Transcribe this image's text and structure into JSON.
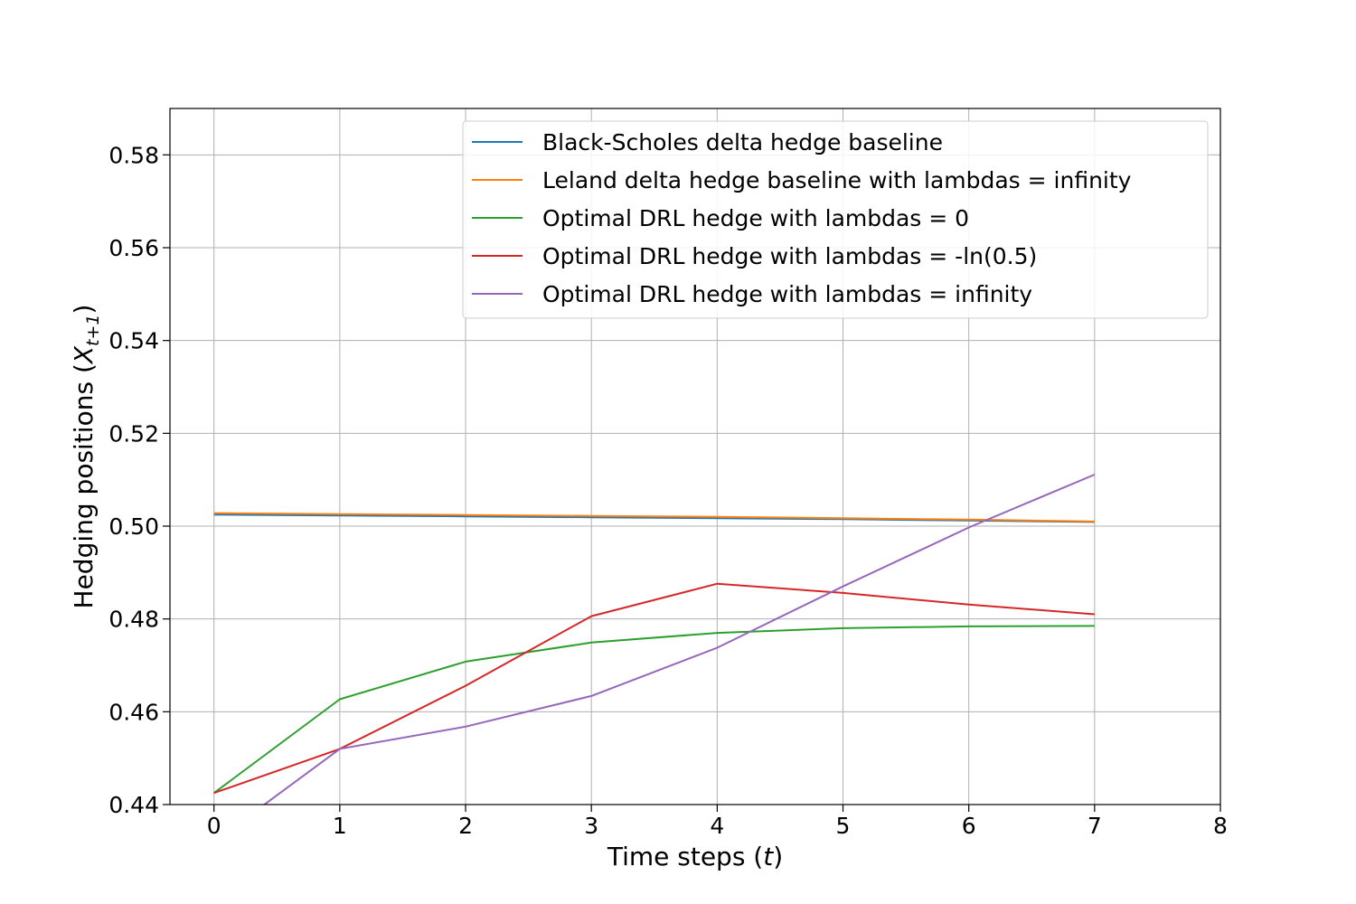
{
  "chart_data": {
    "type": "line",
    "x": [
      0,
      1,
      2,
      3,
      4,
      5,
      6,
      7
    ],
    "xlim": [
      -0.35,
      8.0
    ],
    "ylim": [
      0.44,
      0.59
    ],
    "xticks": [
      0,
      1,
      2,
      3,
      4,
      5,
      6,
      7,
      8
    ],
    "xtick_labels": [
      "0",
      "1",
      "2",
      "3",
      "4",
      "5",
      "6",
      "7",
      "8"
    ],
    "yticks": [
      0.44,
      0.46,
      0.48,
      0.5,
      0.52,
      0.54,
      0.56,
      0.58
    ],
    "ytick_labels": [
      "0.44",
      "0.46",
      "0.48",
      "0.50",
      "0.52",
      "0.54",
      "0.56",
      "0.58"
    ],
    "xlabel": {
      "main": "Time steps (",
      "var": "t",
      "close": ")"
    },
    "ylabel": {
      "main": "Hedging positions (",
      "var": "X",
      "sub": "t+1",
      "close": ")"
    },
    "grid": true,
    "legend_position": "top-right",
    "series": [
      {
        "name": "Black-Scholes delta hedge baseline",
        "color": "#1f77b4",
        "values": [
          0.5025,
          0.5023,
          0.5021,
          0.5019,
          0.5017,
          0.5015,
          0.5012,
          0.5009
        ]
      },
      {
        "name": "Leland delta hedge baseline with lambdas = infinity",
        "color": "#ff7f0e",
        "values": [
          0.5028,
          0.5026,
          0.5024,
          0.5022,
          0.502,
          0.5017,
          0.5014,
          0.501
        ]
      },
      {
        "name": "Optimal DRL hedge with lambdas = 0",
        "color": "#2ca02c",
        "values": [
          0.4425,
          0.4627,
          0.4708,
          0.4749,
          0.477,
          0.478,
          0.4784,
          0.4785
        ]
      },
      {
        "name": "Optimal DRL hedge with lambdas = -ln(0.5)",
        "color": "#d62728",
        "values": [
          0.4425,
          0.452,
          0.4656,
          0.4806,
          0.4876,
          0.4856,
          0.4831,
          0.481
        ]
      },
      {
        "name": "Optimal DRL hedge with lambdas = infinity",
        "color": "#9467bd",
        "values": [
          0.432,
          0.452,
          0.4568,
          0.4634,
          0.4738,
          0.487,
          0.4997,
          0.5111
        ]
      }
    ]
  }
}
